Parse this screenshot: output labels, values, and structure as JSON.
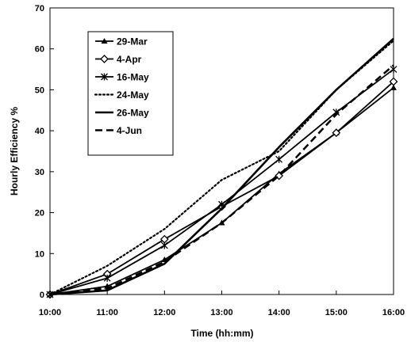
{
  "chart_data": {
    "type": "line",
    "title": "",
    "xlabel": "Time  (hh:mm)",
    "ylabel": "Hourly Efficiency %",
    "categories": [
      "10:00",
      "11:00",
      "12:00",
      "13:00",
      "14:00",
      "15:00",
      "16:00"
    ],
    "ylim": [
      0,
      70
    ],
    "yticks": [
      "0",
      "10",
      "20",
      "30",
      "40",
      "50",
      "60",
      "70"
    ],
    "grid": false,
    "legend_position": "top-left",
    "series": [
      {
        "name": "29-Mar",
        "values": [
          0,
          2,
          8.5,
          17.5,
          29.5,
          39.5,
          50.5
        ],
        "style": "solid",
        "marker": "triangle"
      },
      {
        "name": "4-Apr",
        "values": [
          0,
          5,
          13.5,
          21.5,
          29,
          39.5,
          52
        ],
        "style": "solid",
        "marker": "diamond"
      },
      {
        "name": "16-May",
        "values": [
          0,
          4,
          12,
          22,
          33,
          44.5,
          55
        ],
        "style": "solid",
        "marker": "star"
      },
      {
        "name": "24-May",
        "values": [
          0,
          7,
          16,
          28,
          35,
          50,
          62
        ],
        "style": "dotted",
        "marker": "none"
      },
      {
        "name": "26-May",
        "values": [
          0,
          1,
          7.5,
          21,
          36,
          50,
          62.5
        ],
        "style": "solid-thick",
        "marker": "none"
      },
      {
        "name": "4-Jun",
        "values": [
          0,
          1.5,
          8,
          17.5,
          29,
          44,
          56
        ],
        "style": "dashed",
        "marker": "none"
      }
    ]
  }
}
